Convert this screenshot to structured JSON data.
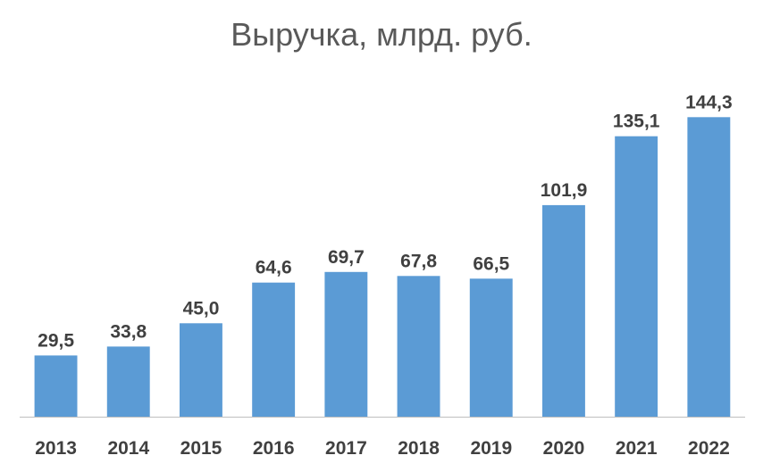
{
  "chart_data": {
    "type": "bar",
    "title": "Выручка, млрд. руб.",
    "categories": [
      "2013",
      "2014",
      "2015",
      "2016",
      "2017",
      "2018",
      "2019",
      "2020",
      "2021",
      "2022"
    ],
    "values": [
      29.5,
      33.8,
      45.0,
      64.6,
      69.7,
      67.8,
      66.5,
      101.9,
      135.1,
      144.3
    ],
    "data_labels": [
      "29,5",
      "33,8",
      "45,0",
      "64,6",
      "69,7",
      "67,8",
      "66,5",
      "101,9",
      "135,1",
      "144,3"
    ],
    "xlabel": "",
    "ylabel": "",
    "ylim": [
      0,
      150
    ],
    "grid": false,
    "legend": "none",
    "bar_color": "#5B9BD5",
    "axis_color": "#BFBFBF"
  }
}
